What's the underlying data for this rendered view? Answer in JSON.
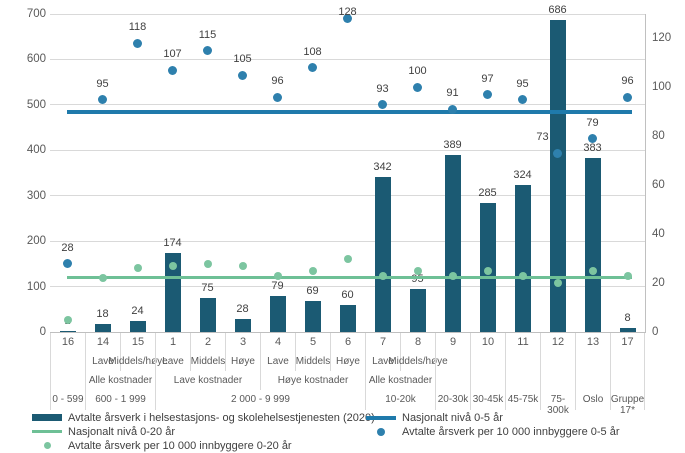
{
  "colors": {
    "bar": "#1b5a73",
    "scatter_0_5": "#2e80ad",
    "scatter_0_20": "#7cc5a0",
    "line_0_5": "#1f7aab",
    "line_0_20": "#6ec096",
    "gridline": "#d9d9d9",
    "axis_line": "#bfbfbf",
    "tick_text": "#595959",
    "data_label_text": "#404040"
  },
  "axes": {
    "left": {
      "ticks": [
        700,
        600,
        500,
        400,
        300,
        200,
        100,
        0
      ],
      "max": 700
    },
    "right": {
      "ticks": [
        120,
        100,
        80,
        60,
        40,
        20,
        0
      ],
      "max": 130
    }
  },
  "chart_data": {
    "type": "bar",
    "subtype": "combo-bar-scatter-with-reference-lines",
    "categories": [
      "16",
      "14",
      "15",
      "1",
      "2",
      "3",
      "4",
      "5",
      "6",
      "7",
      "8",
      "9",
      "10",
      "11",
      "12",
      "13",
      "17"
    ],
    "ylim_left": [
      0,
      700
    ],
    "ylim_right": [
      0,
      130
    ],
    "grid": true,
    "legend_position": "bottom",
    "series": [
      {
        "name": "Avtalte årsverk i helsestasjons- og skolehelsestjenesten (2020)",
        "kind": "bar",
        "axis": "left",
        "color": "#1b5a73",
        "labels_shown": true,
        "values": [
          1,
          18,
          24,
          174,
          75,
          28,
          79,
          69,
          60,
          342,
          95,
          389,
          285,
          324,
          686,
          383,
          8
        ]
      },
      {
        "name": "Avtalte årsverk per 10 000 innbyggere 0-5 år",
        "kind": "scatter",
        "axis": "right",
        "color": "#2e80ad",
        "labels_shown": true,
        "values": [
          28,
          95,
          118,
          107,
          115,
          105,
          96,
          108,
          128,
          93,
          100,
          91,
          97,
          95,
          73,
          79,
          96
        ],
        "label_dx": {
          "14": -15
        }
      },
      {
        "name": "Avtalte årsverk per 10 000 innbyggere 0-20 år",
        "kind": "scatter",
        "axis": "right",
        "color": "#7cc5a0",
        "labels_shown": false,
        "values": [
          5,
          22,
          26,
          27,
          28,
          27,
          23,
          25,
          30,
          23,
          25,
          23,
          25,
          23,
          20,
          25,
          23
        ]
      },
      {
        "name": "Nasjonalt nivå 0-5 år",
        "kind": "hline",
        "axis": "right",
        "color": "#1f7aab",
        "value": 90
      },
      {
        "name": "Nasjonalt nivå 0-20 år",
        "kind": "hline",
        "axis": "right",
        "color": "#6ec096",
        "value": 22.3
      }
    ],
    "x_axis_rows": [
      {
        "name": "kostra-group",
        "cells": [
          {
            "label": "16",
            "span": 1
          },
          {
            "label": "14",
            "span": 1
          },
          {
            "label": "15",
            "span": 1
          },
          {
            "label": "1",
            "span": 1
          },
          {
            "label": "2",
            "span": 1
          },
          {
            "label": "3",
            "span": 1
          },
          {
            "label": "4",
            "span": 1
          },
          {
            "label": "5",
            "span": 1
          },
          {
            "label": "6",
            "span": 1
          },
          {
            "label": "7",
            "span": 1
          },
          {
            "label": "8",
            "span": 1
          },
          {
            "label": "9",
            "span": 1
          },
          {
            "label": "10",
            "span": 1
          },
          {
            "label": "11",
            "span": 1
          },
          {
            "label": "12",
            "span": 1
          },
          {
            "label": "13",
            "span": 1
          },
          {
            "label": "17",
            "span": 1
          }
        ]
      },
      {
        "name": "cost-level",
        "cells": [
          {
            "label": "",
            "span": 1
          },
          {
            "label": "Lave",
            "span": 1
          },
          {
            "label": "Middels/høye",
            "span": 1
          },
          {
            "label": "Lave",
            "span": 1
          },
          {
            "label": "Middels",
            "span": 1
          },
          {
            "label": "Høye",
            "span": 1
          },
          {
            "label": "Lave",
            "span": 1
          },
          {
            "label": "Middels",
            "span": 1
          },
          {
            "label": "Høye",
            "span": 1
          },
          {
            "label": "Lave",
            "span": 1
          },
          {
            "label": "Middels/høye",
            "span": 1
          },
          {
            "label": "",
            "span": 1
          },
          {
            "label": "",
            "span": 1
          },
          {
            "label": "",
            "span": 1
          },
          {
            "label": "",
            "span": 1
          },
          {
            "label": "",
            "span": 1
          },
          {
            "label": "",
            "span": 1
          }
        ]
      },
      {
        "name": "cost-group",
        "cells": [
          {
            "label": "",
            "span": 1
          },
          {
            "label": "Alle kostnader",
            "span": 2
          },
          {
            "label": "Lave kostnader",
            "span": 3
          },
          {
            "label": "Høye kostnader",
            "span": 3
          },
          {
            "label": "Alle kostnader",
            "span": 2
          },
          {
            "label": "",
            "span": 1
          },
          {
            "label": "",
            "span": 1
          },
          {
            "label": "",
            "span": 1
          },
          {
            "label": "",
            "span": 1
          },
          {
            "label": "",
            "span": 1
          },
          {
            "label": "",
            "span": 1
          }
        ]
      },
      {
        "name": "population-group",
        "cells": [
          {
            "label": "0 - 599",
            "span": 1
          },
          {
            "label": "600 - 1 999",
            "span": 2
          },
          {
            "label": "2 000 - 9 999",
            "span": 6
          },
          {
            "label": "10-20k",
            "span": 2
          },
          {
            "label": "20-30k",
            "span": 1
          },
          {
            "label": "30-45k",
            "span": 1
          },
          {
            "label": "45-75k",
            "span": 1
          },
          {
            "label": "75-300k",
            "span": 1
          },
          {
            "label": "Oslo",
            "span": 1
          },
          {
            "label": "Gruppe 17*",
            "span": 1
          }
        ]
      }
    ]
  },
  "legend": {
    "left": [
      {
        "swatch": "bar",
        "label": "Avtalte årsverk i helsestasjons- og skolehelsestjenesten (2020)"
      },
      {
        "swatch": "line-green",
        "label": "Nasjonalt nivå 0-20 år"
      },
      {
        "swatch": "dot-green",
        "label": "Avtalte årsverk  per 10 000 innbyggere 0-20 år"
      }
    ],
    "right": [
      {
        "swatch": "line-blue",
        "label": "Nasjonalt nivå 0-5 år"
      },
      {
        "swatch": "dot-blue",
        "label": "Avtalte årsverk  per 10 000 innbyggere 0-5 år"
      }
    ]
  }
}
